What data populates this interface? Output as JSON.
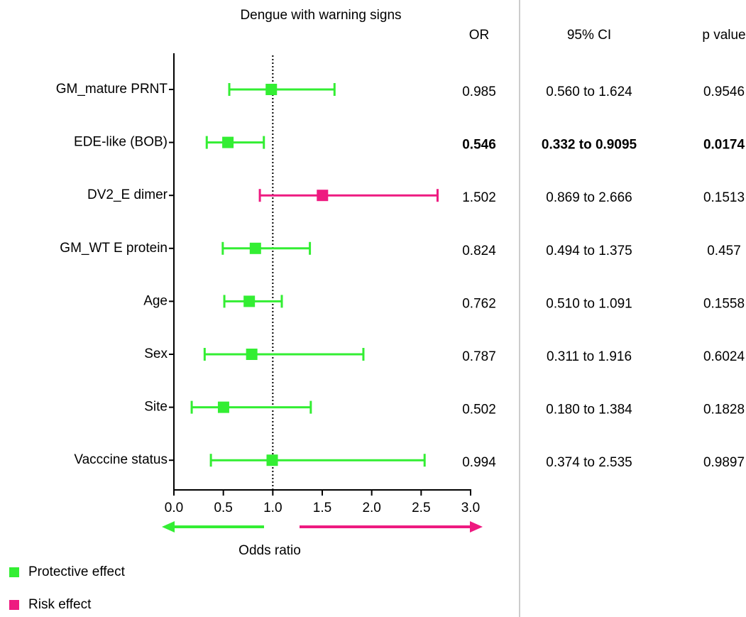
{
  "chart_data": {
    "type": "forest",
    "title": "Dengue  with warning signs",
    "xlabel": "Odds ratio",
    "categories": [
      "GM_mature PRNT",
      "EDE-like (BOB)",
      "DV2_E dimer",
      "GM_WT E protein",
      "Age",
      "Sex",
      "Site",
      "Vacccine status"
    ],
    "series": [
      {
        "name": "Protective effect",
        "color": "#33ee33",
        "values": [
          0.985,
          0.546,
          null,
          0.824,
          0.762,
          0.787,
          0.502,
          0.994
        ],
        "lower": [
          0.56,
          0.332,
          null,
          0.494,
          0.51,
          0.311,
          0.18,
          0.374
        ],
        "upper": [
          1.624,
          0.9095,
          null,
          1.375,
          1.091,
          1.916,
          1.384,
          2.535
        ]
      },
      {
        "name": "Risk effect",
        "color": "#ee1a80",
        "values": [
          null,
          null,
          1.502,
          null,
          null,
          null,
          null,
          null
        ],
        "lower": [
          null,
          null,
          0.869,
          null,
          null,
          null,
          null,
          null
        ],
        "upper": [
          null,
          null,
          2.666,
          null,
          null,
          null,
          null,
          null
        ]
      }
    ],
    "table_headers": [
      "OR",
      "95% CI",
      "p value"
    ],
    "ci_labels": [
      "0.560 to 1.624",
      "0.332 to 0.9095",
      "0.869 to 2.666",
      "0.494 to 1.375",
      "0.510 to 1.091",
      "0.311 to 1.916",
      "0.180 to 1.384",
      "0.374 to 2.535"
    ],
    "p_values": [
      0.9546,
      0.0174,
      0.1513,
      0.457,
      0.1558,
      0.6024,
      0.1828,
      0.9897
    ],
    "significant": [
      false,
      true,
      false,
      false,
      false,
      false,
      false,
      false
    ],
    "reference_line": 1,
    "xlim": [
      0,
      3
    ],
    "xticks": [
      {
        "value": 0,
        "label": "0.0"
      },
      0.5,
      {
        "value": 1,
        "label": "1.0"
      },
      1.5,
      {
        "value": 2,
        "label": "2.0"
      },
      2.5,
      {
        "value": 3,
        "label": "3.0"
      }
    ]
  }
}
